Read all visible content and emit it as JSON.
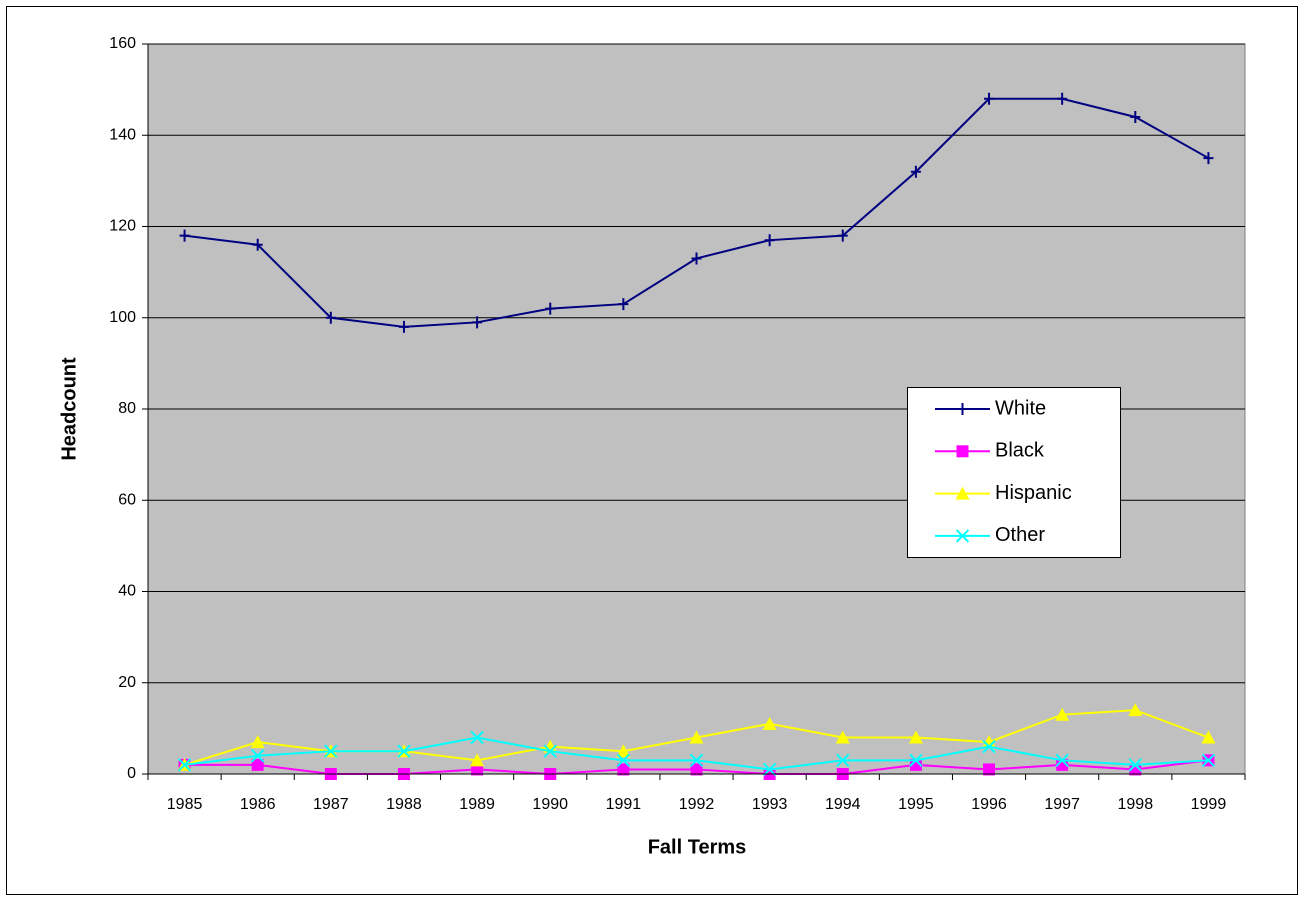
{
  "chart_data": {
    "type": "line",
    "x_label": "Fall Terms",
    "y_label": "Headcount",
    "categories": [
      "1985",
      "1986",
      "1987",
      "1988",
      "1989",
      "1990",
      "1991",
      "1992",
      "1993",
      "1994",
      "1995",
      "1996",
      "1997",
      "1998",
      "1999"
    ],
    "series": [
      {
        "name": "White",
        "color": "#000080",
        "marker": "dash",
        "values": [
          118,
          116,
          100,
          98,
          99,
          102,
          103,
          113,
          117,
          118,
          132,
          148,
          148,
          144,
          135
        ]
      },
      {
        "name": "Black",
        "color": "#ff00ff",
        "marker": "square",
        "values": [
          2,
          2,
          0,
          0,
          1,
          0,
          1,
          1,
          0,
          0,
          2,
          1,
          2,
          1,
          3
        ]
      },
      {
        "name": "Hispanic",
        "color": "#ffff00",
        "marker": "triangle",
        "values": [
          2,
          7,
          5,
          5,
          3,
          6,
          5,
          8,
          11,
          8,
          8,
          7,
          13,
          14,
          8
        ]
      },
      {
        "name": "Other",
        "color": "#00ffff",
        "marker": "x",
        "values": [
          2,
          4,
          5,
          5,
          8,
          5,
          3,
          3,
          1,
          3,
          3,
          6,
          3,
          2,
          3
        ]
      }
    ],
    "ylim": [
      0,
      160
    ],
    "yticks": [
      0,
      20,
      40,
      60,
      80,
      100,
      120,
      140,
      160
    ],
    "grid": true
  }
}
